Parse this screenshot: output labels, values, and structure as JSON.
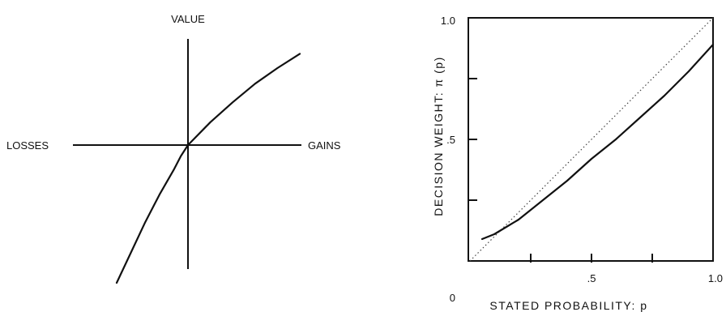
{
  "chart_data": [
    {
      "type": "line",
      "title": "",
      "axes": {
        "top_label": "VALUE",
        "left_label": "LOSSES",
        "right_label": "GAINS"
      },
      "series": [
        {
          "x": [
            -1.0,
            -0.8,
            -0.6,
            -0.4,
            -0.2,
            -0.1,
            0.0,
            0.2,
            0.4,
            0.6,
            0.8,
            1.0
          ],
          "y": [
            -1.0,
            -0.78,
            -0.56,
            -0.36,
            -0.18,
            -0.08,
            0.0,
            0.16,
            0.3,
            0.43,
            0.54,
            0.64
          ]
        }
      ]
    },
    {
      "type": "line",
      "title": "",
      "xlabel": "STATED PROBABILITY: p",
      "ylabel": "DECISION WEIGHT: π (p)",
      "xlim": [
        0,
        1.0
      ],
      "ylim": [
        0,
        1.0
      ],
      "xticks": [
        0,
        0.25,
        0.5,
        0.75,
        1.0
      ],
      "xtick_labels": [
        "",
        "",
        ".5",
        "",
        "1.0"
      ],
      "yticks": [
        0,
        0.25,
        0.5,
        0.75,
        1.0
      ],
      "ytick_labels": [
        "0",
        "",
        ".5",
        "",
        "1.0"
      ],
      "series": [
        {
          "style": "solid",
          "x": [
            0.05,
            0.1,
            0.15,
            0.2,
            0.3,
            0.4,
            0.5,
            0.6,
            0.7,
            0.8,
            0.9,
            1.0
          ],
          "y": [
            0.09,
            0.11,
            0.14,
            0.17,
            0.25,
            0.33,
            0.42,
            0.5,
            0.59,
            0.68,
            0.78,
            0.89
          ]
        },
        {
          "style": "dotted",
          "x": [
            0.0,
            1.0
          ],
          "y": [
            0.0,
            1.0
          ]
        }
      ]
    }
  ]
}
